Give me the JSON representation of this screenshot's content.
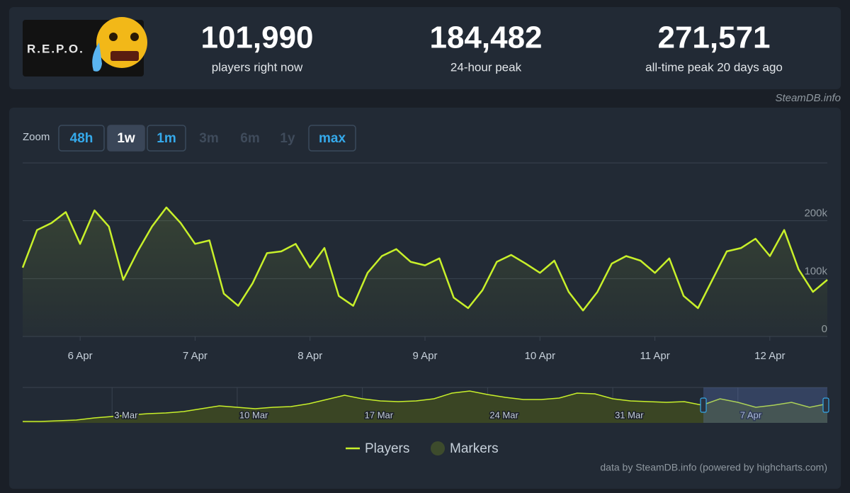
{
  "header": {
    "logo_text": "R.E.P.O.",
    "stats": [
      {
        "value": "101,990",
        "label": "players right now"
      },
      {
        "value": "184,482",
        "label": "24-hour peak"
      },
      {
        "value": "271,571",
        "label": "all-time peak 20 days ago"
      }
    ],
    "credit": "SteamDB.info"
  },
  "zoom": {
    "label": "Zoom",
    "buttons": [
      {
        "label": "48h",
        "state": "enabled"
      },
      {
        "label": "1w",
        "state": "selected"
      },
      {
        "label": "1m",
        "state": "enabled"
      },
      {
        "label": "3m",
        "state": "disabled"
      },
      {
        "label": "6m",
        "state": "disabled"
      },
      {
        "label": "1y",
        "state": "disabled"
      },
      {
        "label": "max",
        "state": "enabled"
      }
    ]
  },
  "chart_data": [
    {
      "type": "line",
      "categories": [
        null,
        null,
        null,
        null,
        "6 Apr",
        null,
        null,
        null,
        null,
        null,
        null,
        null,
        "7 Apr",
        null,
        null,
        null,
        null,
        null,
        null,
        null,
        "8 Apr",
        null,
        null,
        null,
        null,
        null,
        null,
        null,
        "9 Apr",
        null,
        null,
        null,
        null,
        null,
        null,
        null,
        "10 Apr",
        null,
        null,
        null,
        null,
        null,
        null,
        null,
        "11 Apr",
        null,
        null,
        null,
        null,
        null,
        null,
        null,
        "12 Apr",
        null,
        null,
        null,
        null
      ],
      "series": [
        {
          "name": "Players",
          "color": "#c8f02a",
          "values": [
            119000,
            184000,
            196000,
            215000,
            160000,
            218000,
            190000,
            98000,
            147000,
            190000,
            223000,
            196000,
            160000,
            166000,
            74000,
            53000,
            92000,
            144000,
            147000,
            160000,
            119000,
            153000,
            70000,
            53000,
            110000,
            139000,
            151000,
            129000,
            123000,
            135000,
            67000,
            49000,
            80000,
            129000,
            141000,
            126000,
            110000,
            131000,
            77000,
            45000,
            77000,
            126000,
            139000,
            131000,
            110000,
            135000,
            70000,
            49000,
            98000,
            147000,
            153000,
            169000,
            139000,
            184000,
            116000,
            77000,
            98000
          ]
        }
      ],
      "markers": {
        "name": "Markers",
        "color": "#3d4b2c"
      },
      "ylim": [
        0,
        300000
      ],
      "yticks": [
        0,
        {
          "value": 100000,
          "label": "100k"
        },
        {
          "value": 200000,
          "label": "200k"
        }
      ],
      "grid": true,
      "legend": "bottom"
    },
    {
      "type": "area",
      "categories": [
        null,
        null,
        null,
        null,
        null,
        "3 Mar",
        null,
        null,
        null,
        null,
        null,
        null,
        "10 Mar",
        null,
        null,
        null,
        null,
        null,
        null,
        "17 Mar",
        null,
        null,
        null,
        null,
        null,
        null,
        "24 Mar",
        null,
        null,
        null,
        null,
        null,
        null,
        "31 Mar",
        null,
        null,
        null,
        null,
        null,
        null,
        "7 Apr",
        null,
        null,
        null,
        null,
        null
      ],
      "series": [
        {
          "name": "Players",
          "color": "#c8f02a",
          "values": [
            12000,
            12000,
            18000,
            24000,
            42000,
            54000,
            66000,
            78000,
            84000,
            96000,
            120000,
            144000,
            132000,
            120000,
            132000,
            138000,
            162000,
            198000,
            234000,
            204000,
            186000,
            180000,
            186000,
            204000,
            252000,
            270000,
            240000,
            216000,
            198000,
            198000,
            210000,
            252000,
            246000,
            204000,
            186000,
            180000,
            174000,
            180000,
            150000,
            204000,
            174000,
            132000,
            150000,
            174000,
            132000,
            162000
          ]
        }
      ],
      "ylim": [
        0,
        300000
      ]
    }
  ],
  "footer_credit": "data by SteamDB.info (powered by highcharts.com)"
}
